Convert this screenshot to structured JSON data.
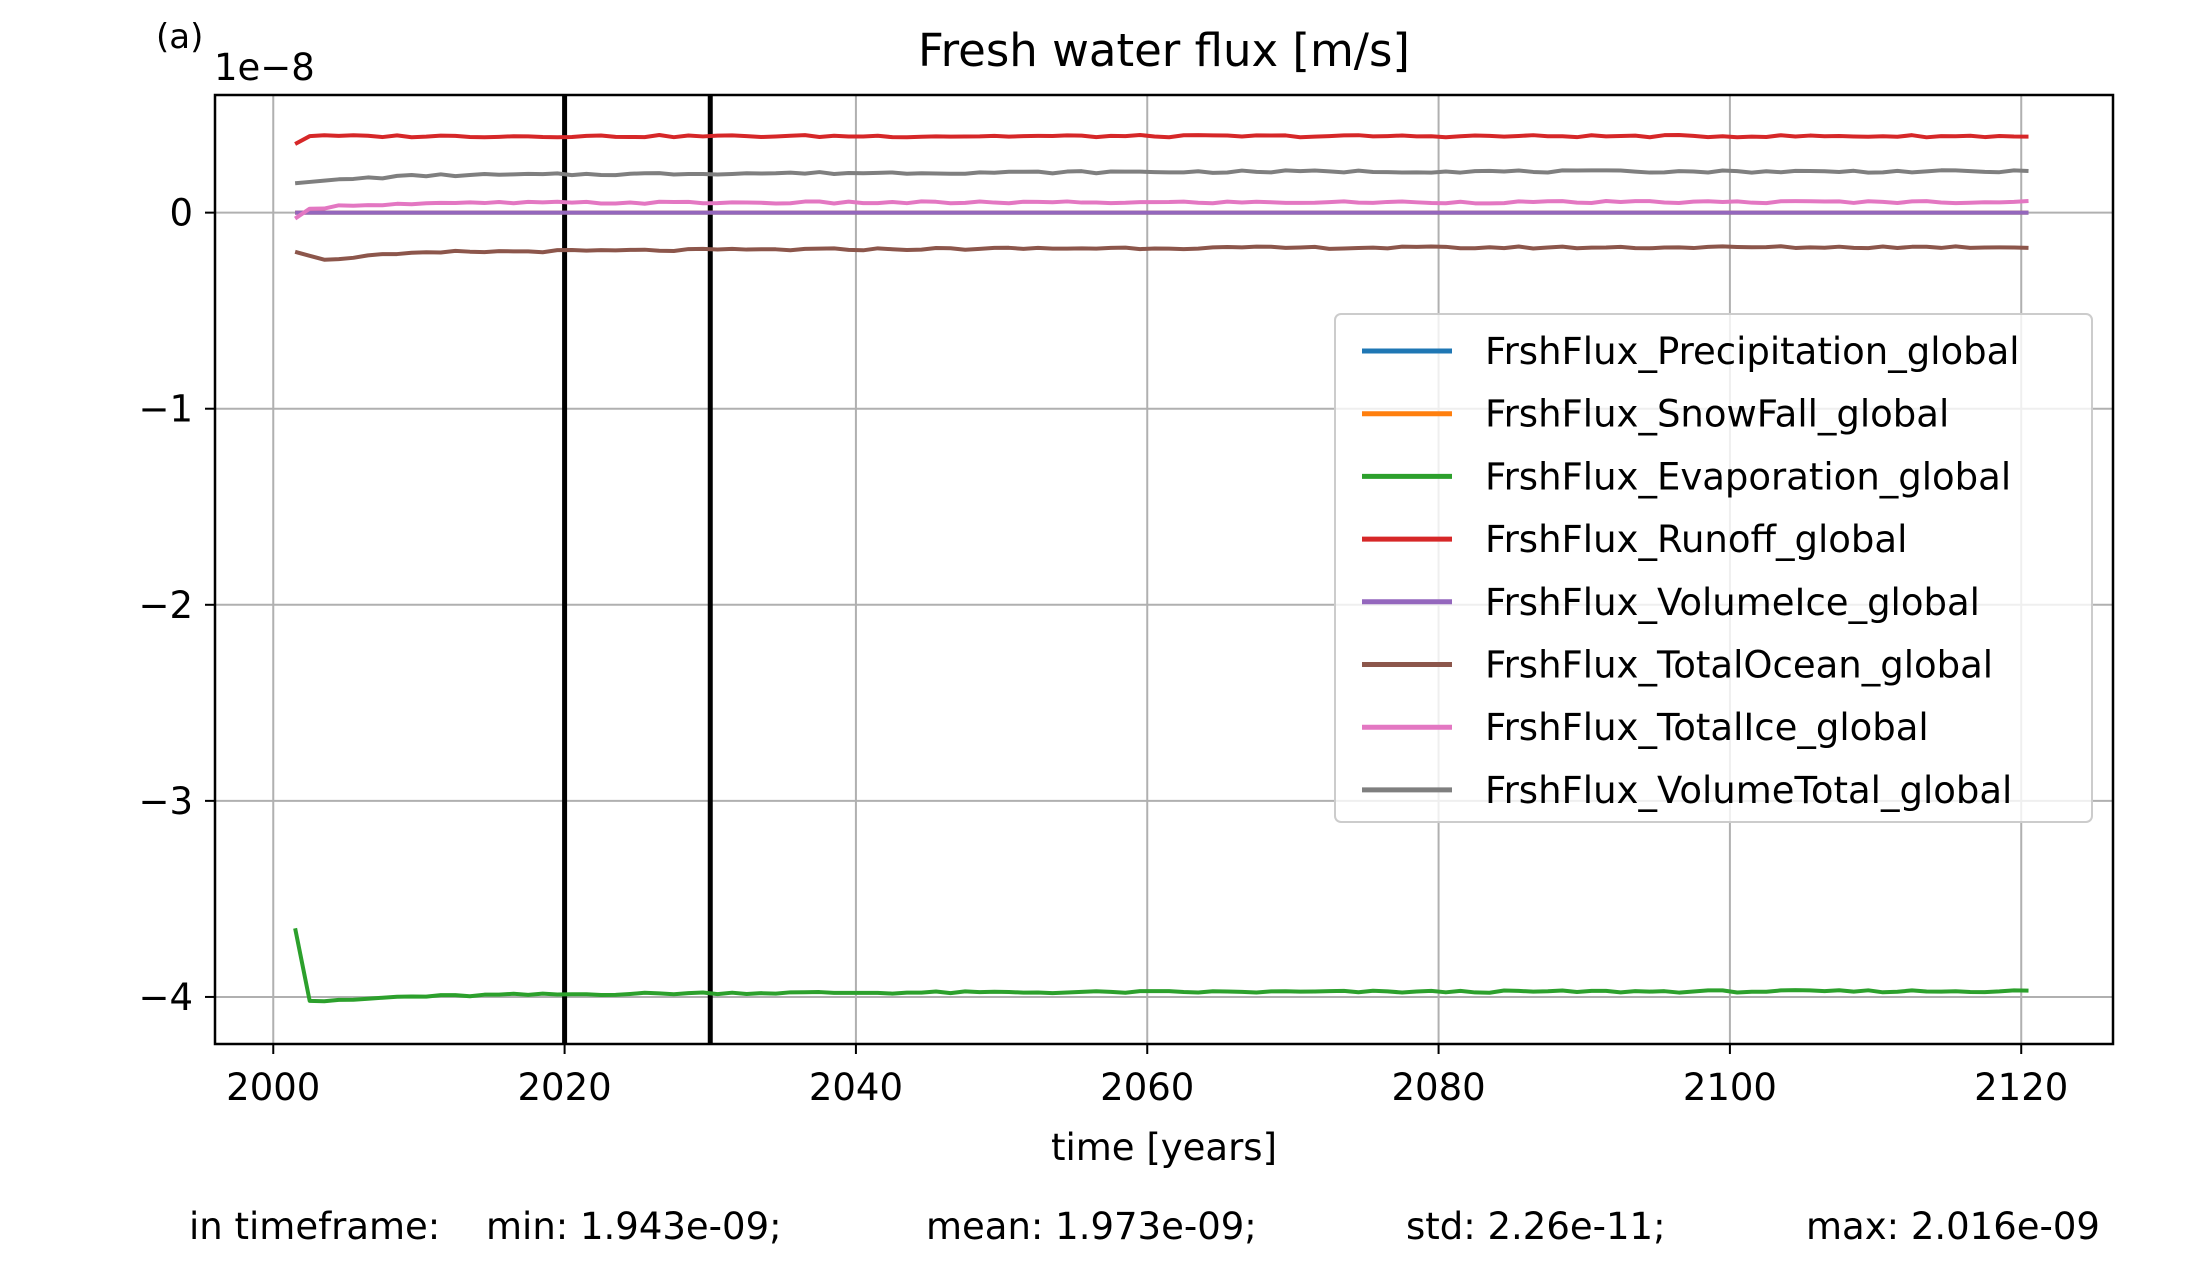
{
  "panel_label": "(a)",
  "stats": {
    "prefix": "in timeframe:",
    "min": "min: 1.943e-09;",
    "mean": "mean: 1.973e-09;",
    "std": "std: 2.26e-11;",
    "max": "max: 2.016e-09"
  },
  "chart_data": {
    "type": "line",
    "title": "Fresh water flux [m/s]",
    "xlabel": "time [years]",
    "ylabel": "",
    "y_offset_label": "1e−8",
    "y_scale": 1e-08,
    "xlim": [
      1996,
      2126.3
    ],
    "ylim": [
      -4.24,
      0.6
    ],
    "xticks": [
      2000,
      2020,
      2040,
      2060,
      2080,
      2100,
      2120
    ],
    "xtick_labels": [
      "2000",
      "2020",
      "2040",
      "2060",
      "2080",
      "2100",
      "2120"
    ],
    "yticks": [
      0,
      -1,
      -2,
      -3,
      -4
    ],
    "ytick_labels": [
      "0",
      "−1",
      "−2",
      "−3",
      "−4"
    ],
    "grid": true,
    "legend_position": "center-right",
    "vlines": [
      2020,
      2030
    ],
    "vline_color": "#000000",
    "x_start": 2001.5,
    "x_step": 1,
    "series": [
      {
        "name": "FrshFlux_Precipitation_global",
        "color": "#1f77b4",
        "anchors": [
          [
            2001.5,
            0.0
          ],
          [
            2120.5,
            0.0
          ]
        ]
      },
      {
        "name": "FrshFlux_SnowFall_global",
        "color": "#ff7f0e",
        "anchors": [
          [
            2001.5,
            0.0
          ],
          [
            2120.5,
            0.0
          ]
        ]
      },
      {
        "name": "FrshFlux_Evaporation_global",
        "color": "#2ca02c",
        "anchors": [
          [
            2001.5,
            -3.65
          ],
          [
            2002.5,
            -4.02
          ],
          [
            2004.5,
            -4.02
          ],
          [
            2008.5,
            -4.0
          ],
          [
            2015.5,
            -3.99
          ],
          [
            2030.5,
            -3.98
          ],
          [
            2060.5,
            -3.975
          ],
          [
            2120.5,
            -3.97
          ]
        ]
      },
      {
        "name": "FrshFlux_Runoff_global",
        "color": "#d62728",
        "anchors": [
          [
            2001.5,
            0.35
          ],
          [
            2002.5,
            0.39
          ],
          [
            2120.5,
            0.39
          ]
        ]
      },
      {
        "name": "FrshFlux_VolumeIce_global",
        "color": "#9467bd",
        "anchors": [
          [
            2001.5,
            0.0
          ],
          [
            2120.5,
            0.0
          ]
        ]
      },
      {
        "name": "FrshFlux_TotalOcean_global",
        "color": "#8c564b",
        "anchors": [
          [
            2001.5,
            -0.2
          ],
          [
            2003.5,
            -0.24
          ],
          [
            2006.5,
            -0.22
          ],
          [
            2012.5,
            -0.2
          ],
          [
            2030.5,
            -0.19
          ],
          [
            2060.5,
            -0.18
          ],
          [
            2120.5,
            -0.175
          ]
        ]
      },
      {
        "name": "FrshFlux_TotalIce_global",
        "color": "#e377c2",
        "anchors": [
          [
            2001.5,
            -0.03
          ],
          [
            2002.5,
            0.02
          ],
          [
            2005.5,
            0.04
          ],
          [
            2015.5,
            0.05
          ],
          [
            2120.5,
            0.055
          ]
        ]
      },
      {
        "name": "FrshFlux_VolumeTotal_global",
        "color": "#7f7f7f",
        "anchors": [
          [
            2001.5,
            0.15
          ],
          [
            2004.5,
            0.17
          ],
          [
            2010.5,
            0.19
          ],
          [
            2030.5,
            0.2
          ],
          [
            2070.5,
            0.21
          ],
          [
            2120.5,
            0.21
          ]
        ]
      }
    ]
  }
}
